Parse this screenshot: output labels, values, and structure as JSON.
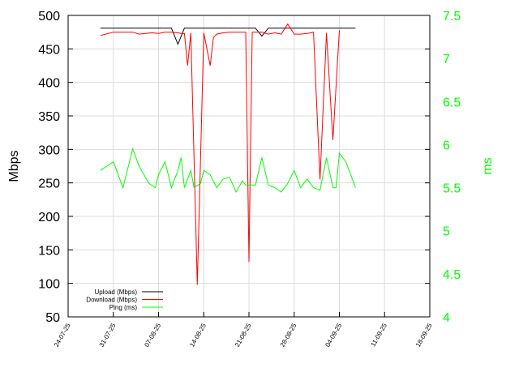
{
  "chart_data": {
    "type": "line",
    "left_axis": {
      "label": "Mbps",
      "ylim": [
        50,
        500
      ],
      "ticks": [
        "50",
        "100",
        "150",
        "200",
        "250",
        "300",
        "350",
        "400",
        "450",
        "500"
      ]
    },
    "right_axis": {
      "label": "ms",
      "ylim": [
        4,
        7.5
      ],
      "ticks": [
        "4",
        "4.5",
        "5",
        "5.5",
        "6",
        "6.5",
        "7",
        "7.5"
      ],
      "color": "#00ff00"
    },
    "x_axis": {
      "ticks": [
        "24-07-25",
        "31-07-25",
        "07-08-25",
        "14-08-25",
        "21-08-25",
        "28-08-25",
        "04-09-25",
        "11-09-25",
        "18-09-25"
      ]
    },
    "grid": true,
    "legend_position": "bottom-left",
    "series": [
      {
        "name": "Upload (Mbps)",
        "axis": "left",
        "color": "#000000",
        "points": [
          [
            5,
            481
          ],
          [
            11,
            481
          ],
          [
            16,
            481
          ],
          [
            17,
            457
          ],
          [
            18,
            481
          ],
          [
            19.5,
            481
          ],
          [
            29,
            481
          ],
          [
            30,
            469
          ],
          [
            31,
            481
          ],
          [
            44.5,
            481
          ]
        ]
      },
      {
        "name": "Download (Mbps)",
        "axis": "left",
        "color": "#ff0000",
        "points": [
          [
            5,
            470
          ],
          [
            7,
            475
          ],
          [
            9,
            475
          ],
          [
            10,
            475
          ],
          [
            11,
            472
          ],
          [
            12,
            473
          ],
          [
            13,
            474
          ],
          [
            14,
            473
          ],
          [
            15,
            475
          ],
          [
            16,
            475
          ],
          [
            17,
            474
          ],
          [
            17.5,
            473
          ],
          [
            18,
            473
          ],
          [
            18.5,
            425
          ],
          [
            19,
            474
          ],
          [
            20,
            98
          ],
          [
            21,
            474
          ],
          [
            22,
            425
          ],
          [
            22.5,
            467
          ],
          [
            23,
            472
          ],
          [
            24,
            474
          ],
          [
            25,
            475
          ],
          [
            26,
            475
          ],
          [
            27,
            475
          ],
          [
            27.5,
            475
          ],
          [
            28,
            132
          ],
          [
            28.5,
            475
          ],
          [
            30,
            475
          ],
          [
            31,
            472
          ],
          [
            32,
            474
          ],
          [
            33,
            472
          ],
          [
            34,
            487
          ],
          [
            35,
            472
          ],
          [
            36,
            472
          ],
          [
            37,
            473
          ],
          [
            38,
            475
          ],
          [
            39,
            255
          ],
          [
            40,
            474
          ],
          [
            41,
            314
          ],
          [
            42,
            478
          ]
        ]
      },
      {
        "name": "Ping (ms)",
        "axis": "right",
        "color": "#00ff00",
        "points": [
          [
            5,
            5.7
          ],
          [
            7,
            5.8
          ],
          [
            8.5,
            5.5
          ],
          [
            10,
            5.95
          ],
          [
            11,
            5.75
          ],
          [
            12.5,
            5.55
          ],
          [
            13.5,
            5.5
          ],
          [
            14,
            5.65
          ],
          [
            15,
            5.8
          ],
          [
            16,
            5.5
          ],
          [
            17,
            5.7
          ],
          [
            17.5,
            5.85
          ],
          [
            18,
            5.5
          ],
          [
            19,
            5.7
          ],
          [
            19.5,
            5.5
          ],
          [
            20.5,
            5.55
          ],
          [
            21,
            5.7
          ],
          [
            22,
            5.65
          ],
          [
            23,
            5.5
          ],
          [
            24,
            5.6
          ],
          [
            25,
            5.62
          ],
          [
            26,
            5.45
          ],
          [
            27,
            5.58
          ],
          [
            27.5,
            5.53
          ],
          [
            28.5,
            5.53
          ],
          [
            29,
            5.53
          ],
          [
            30,
            5.85
          ],
          [
            31,
            5.53
          ],
          [
            32,
            5.5
          ],
          [
            33,
            5.45
          ],
          [
            34,
            5.55
          ],
          [
            35,
            5.7
          ],
          [
            36,
            5.5
          ],
          [
            37,
            5.6
          ],
          [
            38,
            5.5
          ],
          [
            39,
            5.47
          ],
          [
            40,
            5.85
          ],
          [
            41,
            5.5
          ],
          [
            41.5,
            5.5
          ],
          [
            42,
            5.9
          ],
          [
            43,
            5.8
          ],
          [
            44.5,
            5.5
          ]
        ]
      }
    ]
  }
}
